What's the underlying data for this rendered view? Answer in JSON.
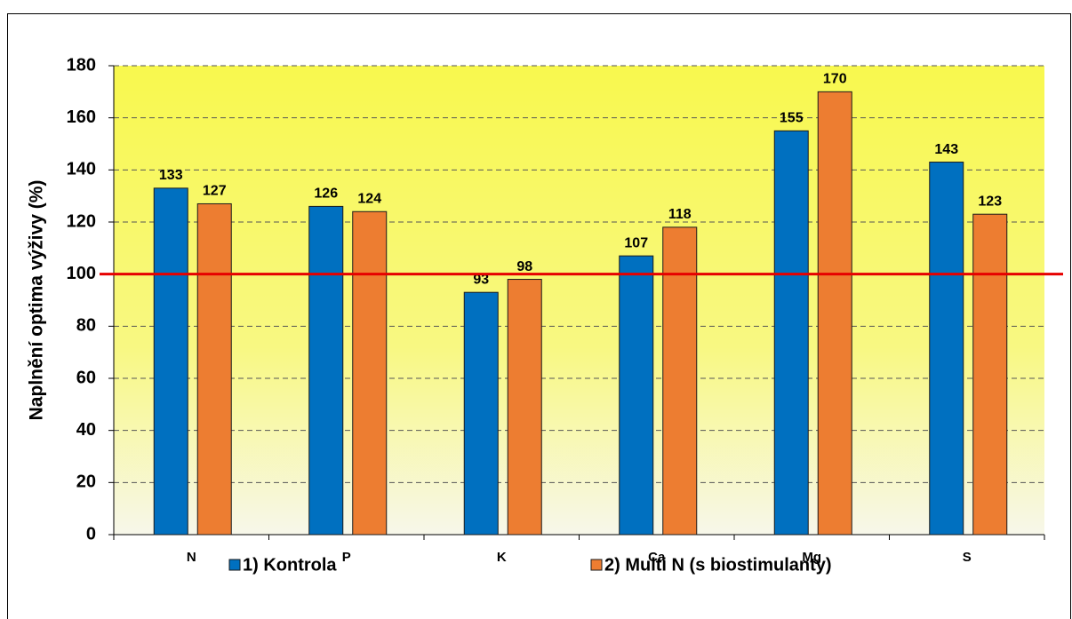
{
  "chart_data": {
    "type": "bar",
    "y_label": "Naplnění optima výživy (%)",
    "categories": [
      "N",
      "P",
      "K",
      "Ca",
      "Mg",
      "S"
    ],
    "series": [
      {
        "name": "1) Kontrola",
        "color": "#0070c0",
        "values": [
          133,
          126,
          93,
          107,
          155,
          143
        ]
      },
      {
        "name": "2) Multi N (s biostimulanty)",
        "color": "#ed7d31",
        "values": [
          127,
          124,
          98,
          118,
          170,
          123
        ]
      }
    ],
    "ylim": [
      0,
      180
    ],
    "yticks": [
      0,
      20,
      40,
      60,
      80,
      100,
      120,
      140,
      160,
      180
    ],
    "grid": true,
    "reference_line": {
      "value": 100,
      "color": "#e60000"
    },
    "legend": "bottom"
  }
}
